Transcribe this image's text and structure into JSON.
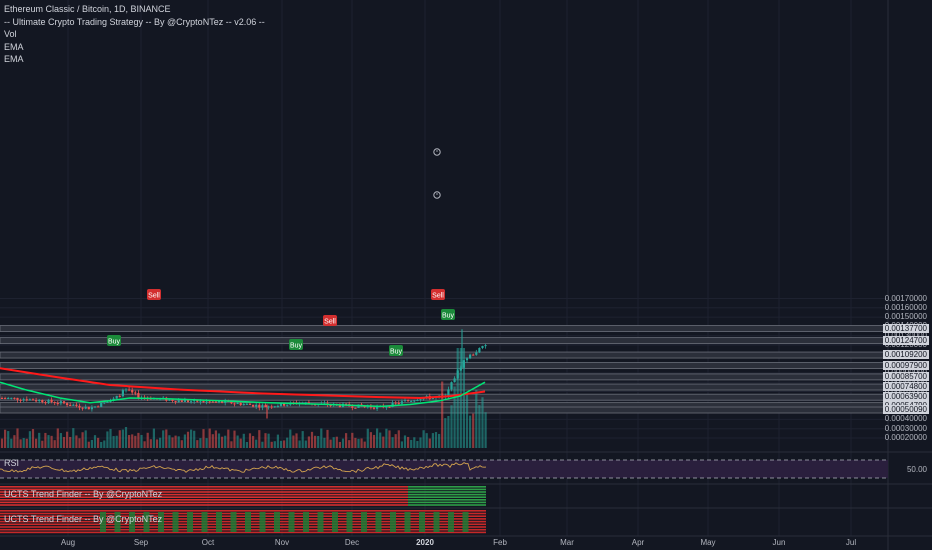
{
  "legend": {
    "line1": "Ethereum Classic / Bitcoin, 1D, BINANCE",
    "line2": "-- Ultimate Crypto Trading Strategy -- By @CryptoNTez -- v2.06 --",
    "line3": "Vol",
    "line4": "EMA",
    "line5": "EMA"
  },
  "panes": {
    "rsi_title": "RSI",
    "rsi_level": "50.00",
    "trend1_title": "UCTS Trend Finder -- By @CryptoNTez",
    "trend2_title": "UCTS Trend Finder -- By @CryptoNTez"
  },
  "price_axis": {
    "labels": [
      "0.00170000",
      "0.00160000",
      "0.00150000",
      "0.00140000",
      "0.00130000",
      "0.00120000",
      "0.00110000",
      "0.00090000",
      "0.00080000",
      "0.00070000",
      "0.00060000",
      "0.00040000",
      "0.00030000",
      "0.00020000"
    ],
    "highlighted": [
      "0.00137700",
      "0.00124700",
      "0.00109200",
      "0.00097900",
      "0.00085700",
      "0.00074800",
      "0.00063900",
      "0.00054790",
      "0.00050090"
    ]
  },
  "time_axis": [
    "Aug",
    "Sep",
    "Oct",
    "Nov",
    "Dec",
    "2020",
    "Feb",
    "Mar",
    "Apr",
    "May",
    "Jun",
    "Jul"
  ],
  "signals": [
    {
      "text": "Sell",
      "type": "sell"
    },
    {
      "text": "Sell",
      "type": "sell"
    },
    {
      "text": "Sell",
      "type": "sell"
    },
    {
      "text": "Buy",
      "type": "buy"
    },
    {
      "text": "Buy",
      "type": "buy"
    },
    {
      "text": "Buy",
      "type": "buy"
    },
    {
      "text": "Buy",
      "type": "buy"
    }
  ],
  "colors": {
    "background": "#131722",
    "up": "#26a69a",
    "down": "#ef5350",
    "ema_fast": "#00e676",
    "ema_slow": "#ff1a1a",
    "rsi_line": "#d4a44f",
    "rsi_bg": "#2a1f3d",
    "level_line": "#b2b5be",
    "sell": "#d32f2f",
    "buy": "#1b8a3a"
  },
  "chart_data": {
    "type": "candlestick",
    "symbol": "Ethereum Classic / Bitcoin",
    "interval": "1D",
    "exchange": "BINANCE",
    "ylim": [
      0.0002,
      0.0017
    ],
    "horizontal_levels": [
      0.001377,
      0.001247,
      0.001092,
      0.000979,
      0.000857,
      0.000748,
      0.000639,
      0.0005479,
      0.0005009
    ],
    "x": [
      "Aug",
      "Sep",
      "Oct",
      "Nov",
      "Dec",
      "2020",
      "Feb",
      "Mar",
      "Apr",
      "May",
      "Jun",
      "Jul"
    ],
    "rsi_level": 50.0
  }
}
